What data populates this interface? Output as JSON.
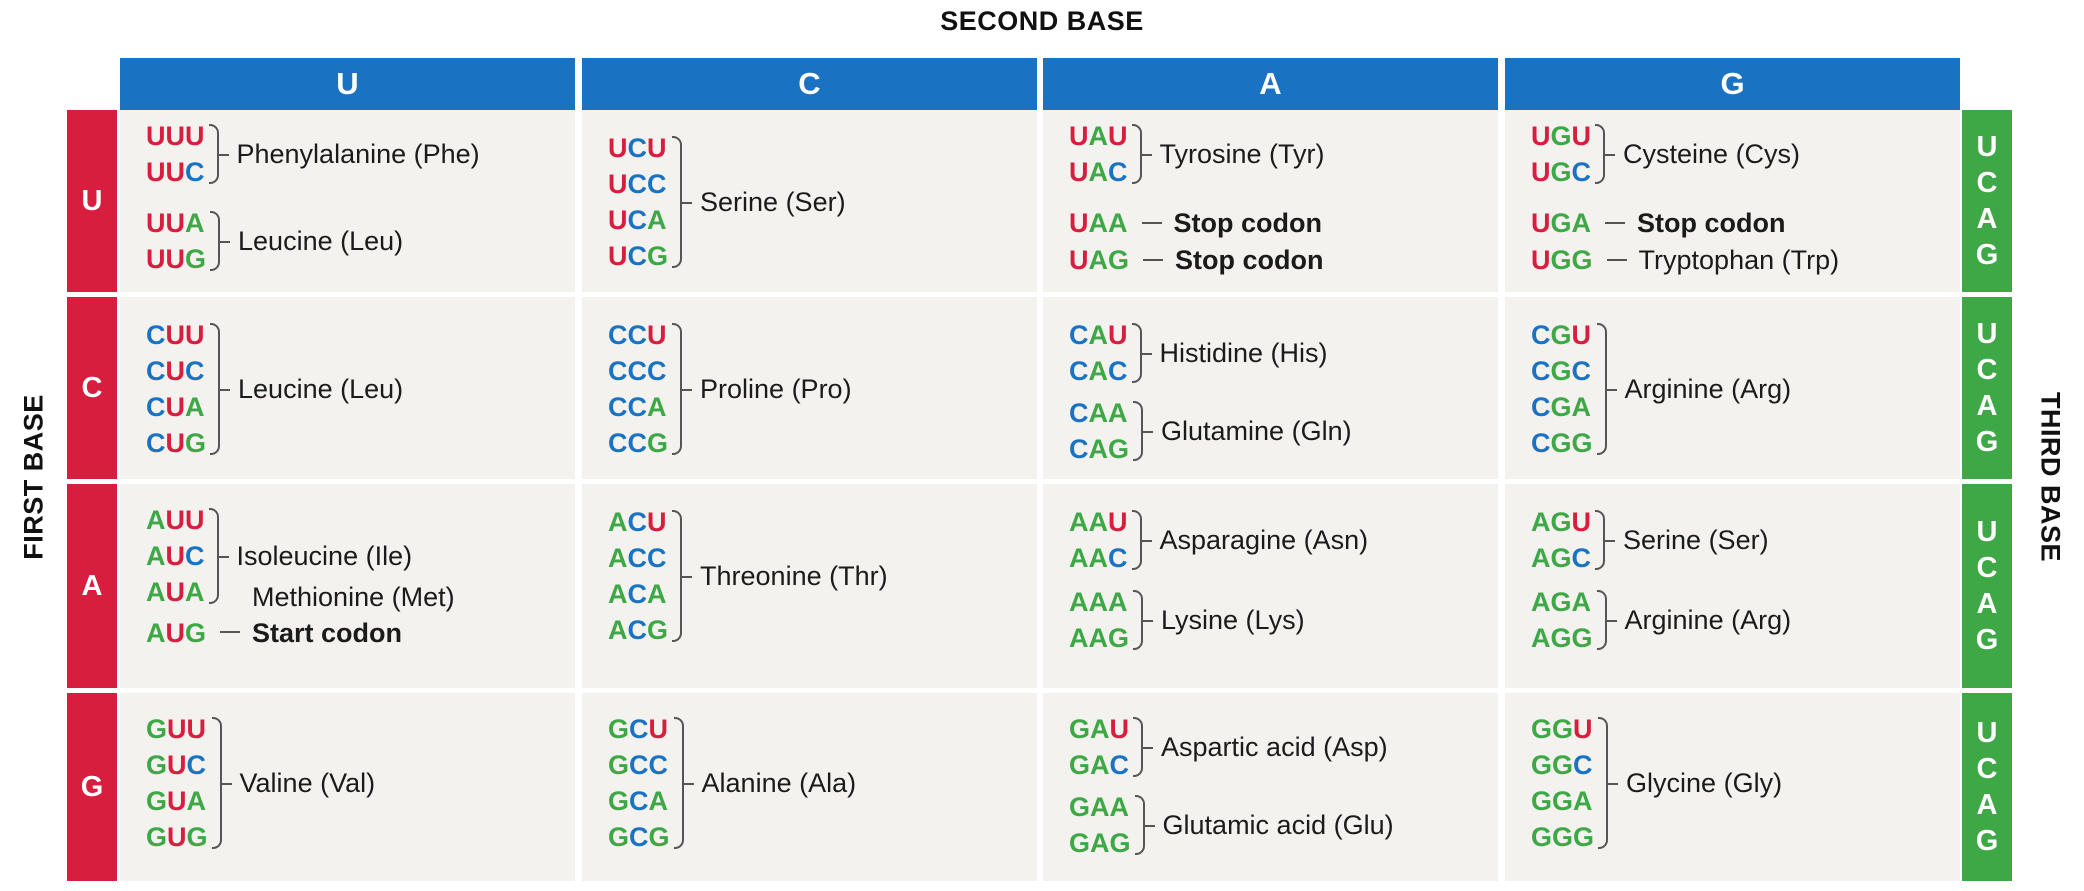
{
  "titles": {
    "second_base": "SECOND BASE",
    "first_base": "FIRST BASE",
    "third_base": "THIRD BASE"
  },
  "colors": {
    "U": "#d81e3f",
    "C": "#1a73c2",
    "A": "#3ea746",
    "G": "#3ea746",
    "header_blue": "#1a73c2",
    "header_red": "#d81e3f",
    "header_green": "#3ea746",
    "cell_bg": "#f3f2ef"
  },
  "second_bases": [
    "U",
    "C",
    "A",
    "G"
  ],
  "first_bases": [
    "U",
    "C",
    "A",
    "G"
  ],
  "third_bases": [
    "U",
    "C",
    "A",
    "G"
  ],
  "rows": [
    {
      "cells": [
        {
          "groups": [
            {
              "codons": [
                "UUU",
                "UUC"
              ],
              "label": "Phenylalanine (Phe)"
            },
            {
              "codons": [
                "UUA",
                "UUG"
              ],
              "label": "Leucine (Leu)"
            }
          ]
        },
        {
          "groups": [
            {
              "codons": [
                "UCU",
                "UCC",
                "UCA",
                "UCG"
              ],
              "label": "Serine (Ser)"
            }
          ]
        },
        {
          "groups": [
            {
              "codons": [
                "UAU",
                "UAC"
              ],
              "label": "Tyrosine (Tyr)"
            },
            {
              "codons": [
                "UAA"
              ],
              "label": "Stop codon",
              "bold": true
            },
            {
              "codons": [
                "UAG"
              ],
              "label": "Stop codon",
              "bold": true
            }
          ]
        },
        {
          "groups": [
            {
              "codons": [
                "UGU",
                "UGC"
              ],
              "label": "Cysteine (Cys)"
            },
            {
              "codons": [
                "UGA"
              ],
              "label": "Stop codon",
              "bold": true
            },
            {
              "codons": [
                "UGG"
              ],
              "label": "Tryptophan (Trp)"
            }
          ]
        }
      ]
    },
    {
      "cells": [
        {
          "groups": [
            {
              "codons": [
                "CUU",
                "CUC",
                "CUA",
                "CUG"
              ],
              "label": "Leucine (Leu)"
            }
          ]
        },
        {
          "groups": [
            {
              "codons": [
                "CCU",
                "CCC",
                "CCA",
                "CCG"
              ],
              "label": "Proline (Pro)"
            }
          ]
        },
        {
          "groups": [
            {
              "codons": [
                "CAU",
                "CAC"
              ],
              "label": "Histidine (His)"
            },
            {
              "codons": [
                "CAA",
                "CAG"
              ],
              "label": "Glutamine (Gln)"
            }
          ]
        },
        {
          "groups": [
            {
              "codons": [
                "CGU",
                "CGC",
                "CGA",
                "CGG"
              ],
              "label": "Arginine (Arg)"
            }
          ]
        }
      ]
    },
    {
      "cells": [
        {
          "groups": [
            {
              "codons": [
                "AUU",
                "AUC",
                "AUA"
              ],
              "label": "Isoleucine (Ile)"
            },
            {
              "codons": [
                "AUG"
              ],
              "label": "Methionine (Met)",
              "label2": "Start codon"
            }
          ]
        },
        {
          "groups": [
            {
              "codons": [
                "ACU",
                "ACC",
                "ACA",
                "ACG"
              ],
              "label": "Threonine (Thr)"
            }
          ]
        },
        {
          "groups": [
            {
              "codons": [
                "AAU",
                "AAC"
              ],
              "label": "Asparagine (Asn)"
            },
            {
              "codons": [
                "AAA",
                "AAG"
              ],
              "label": "Lysine (Lys)"
            }
          ]
        },
        {
          "groups": [
            {
              "codons": [
                "AGU",
                "AGC"
              ],
              "label": "Serine (Ser)"
            },
            {
              "codons": [
                "AGA",
                "AGG"
              ],
              "label": "Arginine (Arg)"
            }
          ]
        }
      ]
    },
    {
      "cells": [
        {
          "groups": [
            {
              "codons": [
                "GUU",
                "GUC",
                "GUA",
                "GUG"
              ],
              "label": "Valine (Val)"
            }
          ]
        },
        {
          "groups": [
            {
              "codons": [
                "GCU",
                "GCC",
                "GCA",
                "GCG"
              ],
              "label": "Alanine (Ala)"
            }
          ]
        },
        {
          "groups": [
            {
              "codons": [
                "GAU",
                "GAC"
              ],
              "label": "Aspartic acid (Asp)"
            },
            {
              "codons": [
                "GAA",
                "GAG"
              ],
              "label": "Glutamic acid (Glu)"
            }
          ]
        },
        {
          "groups": [
            {
              "codons": [
                "GGU",
                "GGC",
                "GGA",
                "GGG"
              ],
              "label": "Glycine (Gly)"
            }
          ]
        }
      ]
    }
  ]
}
